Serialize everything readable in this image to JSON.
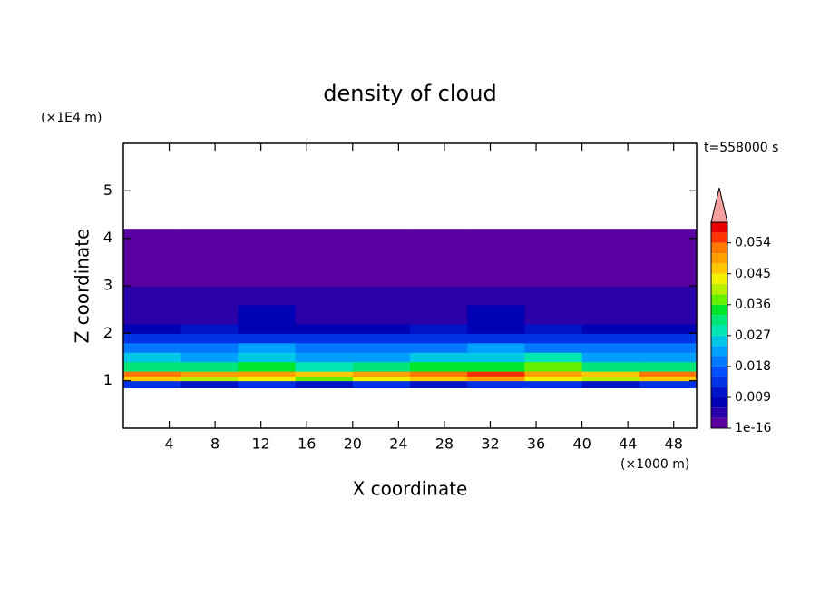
{
  "chart_data": {
    "type": "heatmap",
    "title": "density of cloud",
    "x_label": "X coordinate",
    "y_label": "Z coordinate",
    "x_unit": "(×1000 m)",
    "y_unit": "(×1E4 m)",
    "time_label": "t=558000 s",
    "xlim": [
      0,
      50
    ],
    "ylim": [
      0,
      6
    ],
    "xticks": [
      4,
      8,
      12,
      16,
      20,
      24,
      28,
      32,
      36,
      40,
      44,
      48
    ],
    "yticks": [
      1,
      2,
      3,
      4,
      5
    ],
    "x_edges": [
      0,
      5,
      10,
      15,
      20,
      25,
      30,
      35,
      40,
      45,
      50
    ],
    "y_edges": [
      0.85,
      1.0,
      1.1,
      1.2,
      1.4,
      1.6,
      1.8,
      2.0,
      2.2,
      2.6,
      3.0,
      3.5,
      4.2
    ],
    "z": [
      [
        0.012,
        0.01,
        0.013,
        0.011,
        0.012,
        0.01,
        0.013,
        0.012,
        0.011,
        0.012
      ],
      [
        0.046,
        0.04,
        0.044,
        0.038,
        0.042,
        0.045,
        0.048,
        0.043,
        0.04,
        0.047
      ],
      [
        0.052,
        0.048,
        0.05,
        0.045,
        0.049,
        0.051,
        0.054,
        0.05,
        0.047,
        0.053
      ],
      [
        0.032,
        0.03,
        0.034,
        0.029,
        0.031,
        0.033,
        0.035,
        0.036,
        0.031,
        0.03
      ],
      [
        0.024,
        0.022,
        0.025,
        0.021,
        0.023,
        0.024,
        0.026,
        0.027,
        0.022,
        0.021
      ],
      [
        0.02,
        0.018,
        0.021,
        0.019,
        0.02,
        0.018,
        0.022,
        0.02,
        0.019,
        0.018
      ],
      [
        0.013,
        0.012,
        0.014,
        0.012,
        0.013,
        0.012,
        0.014,
        0.013,
        0.012,
        0.013
      ],
      [
        0.008,
        0.009,
        0.008,
        0.007,
        0.008,
        0.009,
        0.008,
        0.009,
        0.008,
        0.007
      ],
      [
        0.005,
        0.005,
        0.006,
        0.005,
        0.004,
        0.005,
        0.006,
        0.005,
        0.005,
        0.004
      ],
      [
        0.003,
        0.003,
        0.004,
        0.003,
        0.003,
        0.003,
        0.004,
        0.003,
        0.003,
        0.003
      ],
      [
        0.001,
        0.001,
        0.001,
        0.001,
        0.001,
        0.001,
        0.001,
        0.001,
        0.001,
        0.001
      ],
      [
        0.0005,
        0.0005,
        0.0005,
        0.0005,
        0.0005,
        0.0005,
        0.0005,
        0.0005,
        0.0005,
        0.0005
      ]
    ],
    "levels": [
      0,
      0.003,
      0.006,
      0.009,
      0.012,
      0.015,
      0.018,
      0.021,
      0.024,
      0.027,
      0.03,
      0.033,
      0.036,
      0.039,
      0.042,
      0.045,
      0.048,
      0.051,
      0.054,
      0.057,
      0.06
    ],
    "colors": [
      "#5a00a0",
      "#2a00a8",
      "#0000b4",
      "#0014c8",
      "#0032e6",
      "#0050ff",
      "#0078ff",
      "#00a0ff",
      "#00c8e6",
      "#00e6b4",
      "#00e678",
      "#00e628",
      "#64f000",
      "#b4f000",
      "#f0f000",
      "#ffc800",
      "#ffa000",
      "#ff7800",
      "#ff3200",
      "#e60000"
    ],
    "extend_color": "#f4a0a0",
    "colorbar_ticks": [
      1e-16,
      0.009,
      0.018,
      0.027,
      0.036,
      0.045,
      0.054
    ]
  }
}
